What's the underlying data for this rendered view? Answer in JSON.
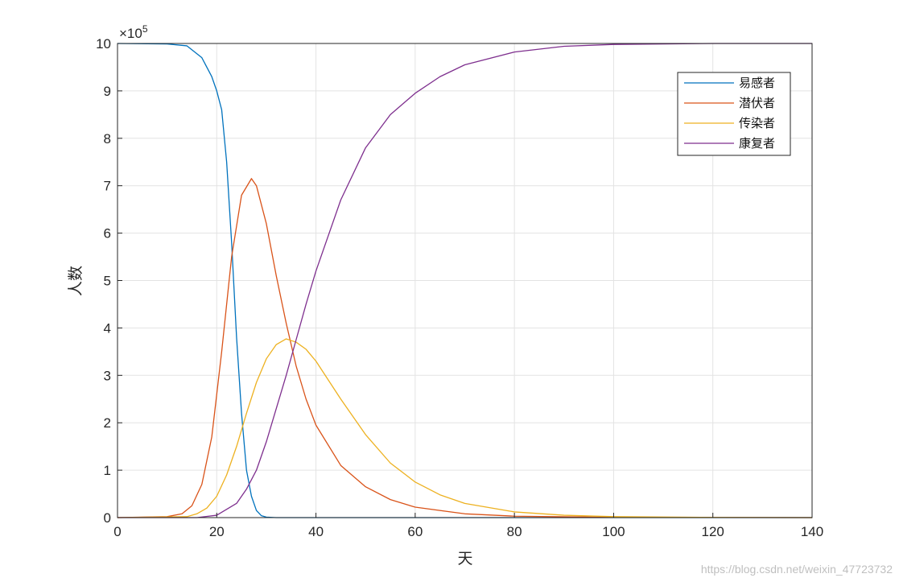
{
  "chart_data": {
    "type": "line",
    "xlabel": "天",
    "ylabel": "人数",
    "y_multiplier_label": "×10",
    "y_multiplier_exp": "5",
    "xlim": [
      0,
      140
    ],
    "ylim": [
      0,
      10
    ],
    "x_ticks": [
      0,
      20,
      40,
      60,
      80,
      100,
      120,
      140
    ],
    "y_ticks": [
      0,
      1,
      2,
      3,
      4,
      5,
      6,
      7,
      8,
      9,
      10
    ],
    "grid": true,
    "legend_position": "top-right",
    "series": [
      {
        "name": "易感者",
        "color": "#0072BD",
        "points": [
          [
            0,
            10
          ],
          [
            10,
            9.99
          ],
          [
            14,
            9.95
          ],
          [
            17,
            9.7
          ],
          [
            19,
            9.3
          ],
          [
            20,
            9.0
          ],
          [
            21,
            8.6
          ],
          [
            22,
            7.5
          ],
          [
            23,
            5.8
          ],
          [
            24,
            3.8
          ],
          [
            25,
            2.2
          ],
          [
            26,
            1.0
          ],
          [
            27,
            0.45
          ],
          [
            28,
            0.15
          ],
          [
            29,
            0.04
          ],
          [
            30,
            0.01
          ],
          [
            32,
            0
          ],
          [
            140,
            0
          ]
        ]
      },
      {
        "name": "潜伏者",
        "color": "#D95319",
        "points": [
          [
            0,
            0
          ],
          [
            10,
            0.02
          ],
          [
            13,
            0.08
          ],
          [
            15,
            0.25
          ],
          [
            17,
            0.7
          ],
          [
            19,
            1.7
          ],
          [
            21,
            3.5
          ],
          [
            23,
            5.5
          ],
          [
            25,
            6.8
          ],
          [
            27,
            7.15
          ],
          [
            28,
            7.0
          ],
          [
            30,
            6.2
          ],
          [
            32,
            5.1
          ],
          [
            34,
            4.1
          ],
          [
            36,
            3.2
          ],
          [
            38,
            2.5
          ],
          [
            40,
            1.95
          ],
          [
            45,
            1.1
          ],
          [
            50,
            0.65
          ],
          [
            55,
            0.38
          ],
          [
            60,
            0.22
          ],
          [
            70,
            0.08
          ],
          [
            80,
            0.03
          ],
          [
            100,
            0.005
          ],
          [
            140,
            0
          ]
        ]
      },
      {
        "name": "传染者",
        "color": "#EDB120",
        "points": [
          [
            0,
            0
          ],
          [
            14,
            0.02
          ],
          [
            16,
            0.08
          ],
          [
            18,
            0.2
          ],
          [
            20,
            0.45
          ],
          [
            22,
            0.9
          ],
          [
            24,
            1.5
          ],
          [
            26,
            2.2
          ],
          [
            28,
            2.85
          ],
          [
            30,
            3.35
          ],
          [
            32,
            3.65
          ],
          [
            34,
            3.77
          ],
          [
            36,
            3.7
          ],
          [
            38,
            3.55
          ],
          [
            40,
            3.3
          ],
          [
            45,
            2.5
          ],
          [
            50,
            1.75
          ],
          [
            55,
            1.15
          ],
          [
            60,
            0.75
          ],
          [
            65,
            0.48
          ],
          [
            70,
            0.3
          ],
          [
            80,
            0.12
          ],
          [
            90,
            0.05
          ],
          [
            100,
            0.02
          ],
          [
            120,
            0.004
          ],
          [
            140,
            0
          ]
        ]
      },
      {
        "name": "康复者",
        "color": "#7E2F8E",
        "points": [
          [
            0,
            0
          ],
          [
            16,
            0
          ],
          [
            20,
            0.05
          ],
          [
            24,
            0.3
          ],
          [
            26,
            0.6
          ],
          [
            28,
            1.0
          ],
          [
            30,
            1.6
          ],
          [
            32,
            2.3
          ],
          [
            34,
            3.0
          ],
          [
            36,
            3.75
          ],
          [
            38,
            4.5
          ],
          [
            40,
            5.2
          ],
          [
            45,
            6.7
          ],
          [
            50,
            7.8
          ],
          [
            55,
            8.5
          ],
          [
            60,
            8.95
          ],
          [
            65,
            9.3
          ],
          [
            70,
            9.55
          ],
          [
            80,
            9.82
          ],
          [
            90,
            9.94
          ],
          [
            100,
            9.98
          ],
          [
            120,
            10
          ],
          [
            140,
            10
          ]
        ]
      }
    ]
  },
  "watermark": "https://blog.csdn.net/weixin_47723732"
}
